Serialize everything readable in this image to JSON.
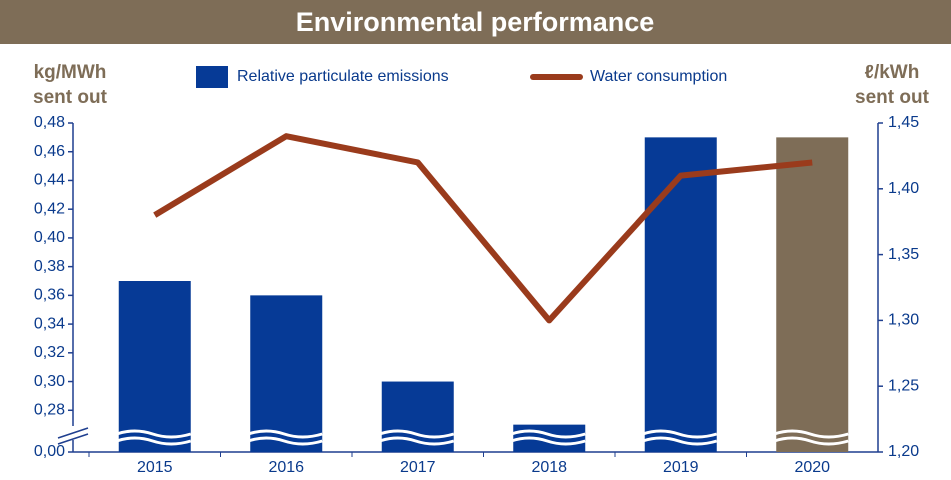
{
  "chart_data": {
    "type": "bar_line",
    "title": "Environmental performance",
    "y_label": [
      "kg/MWh",
      "sent out"
    ],
    "y2_label": [
      "ℓ/kWh",
      "sent out"
    ],
    "categories": [
      "2015",
      "2016",
      "2017",
      "2018",
      "2019",
      "2020"
    ],
    "series": [
      {
        "name": "Relative particulate emissions",
        "type": "bar",
        "color": "#063a96",
        "colors": [
          "#063a96",
          "#063a96",
          "#063a96",
          "#063a96",
          "#063a96",
          "#7e6d57"
        ],
        "values": [
          0.37,
          0.36,
          0.3,
          0.27,
          0.47,
          0.47
        ]
      },
      {
        "name": "Water consumption",
        "type": "line",
        "axis": "y2",
        "color": "#9a3b1c",
        "values": [
          1.38,
          1.44,
          1.42,
          1.3,
          1.41,
          1.42
        ]
      }
    ],
    "ylim": [
      0,
      0.48
    ],
    "y_break": [
      0,
      0.26
    ],
    "yticks": [
      {
        "value": 0,
        "label": "0,00"
      },
      {
        "value": 0.28,
        "label": "0,28"
      },
      {
        "value": 0.3,
        "label": "0,30"
      },
      {
        "value": 0.32,
        "label": "0,32"
      },
      {
        "value": 0.34,
        "label": "0,34"
      },
      {
        "value": 0.36,
        "label": "0,36"
      },
      {
        "value": 0.38,
        "label": "0,38"
      },
      {
        "value": 0.4,
        "label": "0,40"
      },
      {
        "value": 0.42,
        "label": "0,42"
      },
      {
        "value": 0.44,
        "label": "0,44"
      },
      {
        "value": 0.46,
        "label": "0,46"
      },
      {
        "value": 0.48,
        "label": "0,48"
      }
    ],
    "y2lim": [
      1.2,
      1.45
    ],
    "y2ticks": [
      {
        "value": 1.2,
        "label": "1,20"
      },
      {
        "value": 1.25,
        "label": "1,25"
      },
      {
        "value": 1.3,
        "label": "1,30"
      },
      {
        "value": 1.35,
        "label": "1,35"
      },
      {
        "value": 1.4,
        "label": "1,40"
      },
      {
        "value": 1.45,
        "label": "1,45"
      }
    ]
  }
}
